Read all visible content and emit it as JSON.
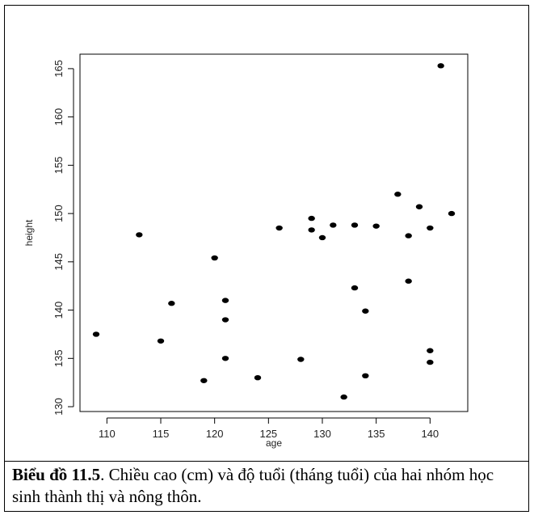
{
  "chart_data": {
    "type": "scatter",
    "xlabel": "age",
    "ylabel": "height",
    "xlim": [
      107.5,
      143.5
    ],
    "ylim": [
      129.5,
      166.5
    ],
    "xticks": [
      110,
      115,
      120,
      125,
      130,
      135,
      140
    ],
    "yticks": [
      130,
      135,
      140,
      145,
      150,
      155,
      160,
      165
    ],
    "grid": false,
    "marker_color": "#000000",
    "points": [
      {
        "x": 109,
        "y": 137.5
      },
      {
        "x": 113,
        "y": 147.8
      },
      {
        "x": 115,
        "y": 136.8
      },
      {
        "x": 116,
        "y": 140.7
      },
      {
        "x": 119,
        "y": 132.7
      },
      {
        "x": 120,
        "y": 145.4
      },
      {
        "x": 121,
        "y": 141.0
      },
      {
        "x": 121,
        "y": 139.0
      },
      {
        "x": 121,
        "y": 135.0
      },
      {
        "x": 124,
        "y": 133.0
      },
      {
        "x": 126,
        "y": 148.5
      },
      {
        "x": 128,
        "y": 134.9
      },
      {
        "x": 129,
        "y": 149.5
      },
      {
        "x": 129,
        "y": 148.3
      },
      {
        "x": 130,
        "y": 147.5
      },
      {
        "x": 131,
        "y": 148.8
      },
      {
        "x": 132,
        "y": 131.0
      },
      {
        "x": 133,
        "y": 148.8
      },
      {
        "x": 133,
        "y": 142.3
      },
      {
        "x": 134,
        "y": 139.9
      },
      {
        "x": 134,
        "y": 133.2
      },
      {
        "x": 135,
        "y": 148.7
      },
      {
        "x": 137,
        "y": 152.0
      },
      {
        "x": 138,
        "y": 147.7
      },
      {
        "x": 138,
        "y": 143.0
      },
      {
        "x": 139,
        "y": 150.7
      },
      {
        "x": 140,
        "y": 148.5
      },
      {
        "x": 140,
        "y": 135.8
      },
      {
        "x": 140,
        "y": 134.6
      },
      {
        "x": 141,
        "y": 165.3
      },
      {
        "x": 142,
        "y": 150.0
      }
    ]
  },
  "caption": {
    "label": "Biểu đồ 11.5",
    "text": ". Chiều cao (cm) và độ tuổi (tháng tuổi) của hai nhóm học sinh thành thị và nông thôn."
  }
}
